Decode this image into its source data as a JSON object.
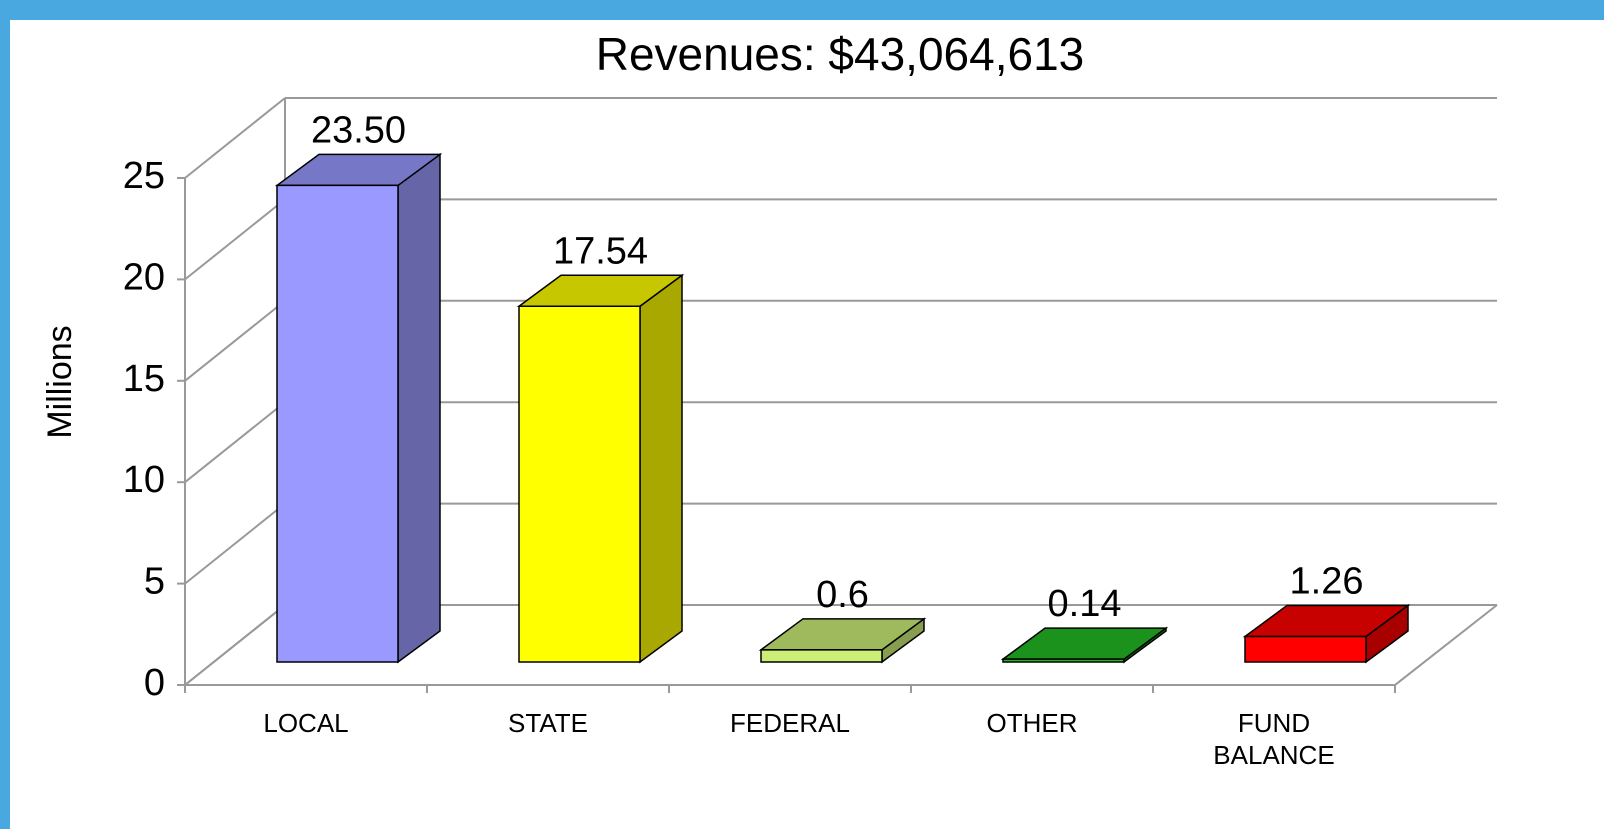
{
  "chart_data": {
    "type": "bar3d",
    "title": "Revenues:  $43,064,613",
    "y_label": "Millions",
    "categories": [
      "LOCAL",
      "STATE",
      "FEDERAL",
      "OTHER",
      "FUND BALANCE"
    ],
    "values": [
      23.5,
      17.54,
      0.6,
      0.14,
      1.26
    ],
    "value_labels": [
      "23.50",
      "17.54",
      "0.6",
      "0.14",
      "1.26"
    ],
    "colors": [
      "#9999ff",
      "#ffff00",
      "#ccee77",
      "#22bb22",
      "#ff0000"
    ],
    "ylim": [
      0,
      25
    ],
    "yticks": [
      0,
      5,
      10,
      15,
      20,
      25
    ],
    "grid": true
  }
}
